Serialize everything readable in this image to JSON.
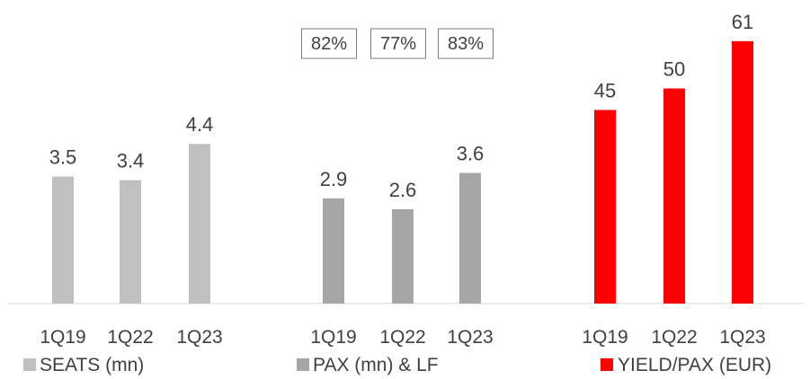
{
  "chart_data": {
    "type": "bar",
    "grid": false,
    "legend_position": "bottom",
    "groups": [
      {
        "name": "SEATS (mn)",
        "color": "#c0c0c0",
        "categories": [
          "1Q19",
          "1Q22",
          "1Q23"
        ],
        "values": [
          3.5,
          3.4,
          4.4
        ],
        "labels": [
          "3.5",
          "3.4",
          "4.4"
        ],
        "ylim": [
          0,
          6
        ]
      },
      {
        "name": "PAX (mn) & LF",
        "color": "#a6a6a6",
        "categories": [
          "1Q19",
          "1Q22",
          "1Q23"
        ],
        "values": [
          2.9,
          2.6,
          3.6
        ],
        "labels": [
          "2.9",
          "2.6",
          "3.6"
        ],
        "load_factors": [
          "82%",
          "77%",
          "83%"
        ],
        "ylim": [
          0,
          6
        ]
      },
      {
        "name": "YIELD/PAX (EUR)",
        "color": "#ff0000",
        "categories": [
          "1Q19",
          "1Q22",
          "1Q23"
        ],
        "values": [
          45,
          50,
          61
        ],
        "labels": [
          "45",
          "50",
          "61"
        ],
        "ylim": [
          0,
          66
        ]
      }
    ]
  }
}
